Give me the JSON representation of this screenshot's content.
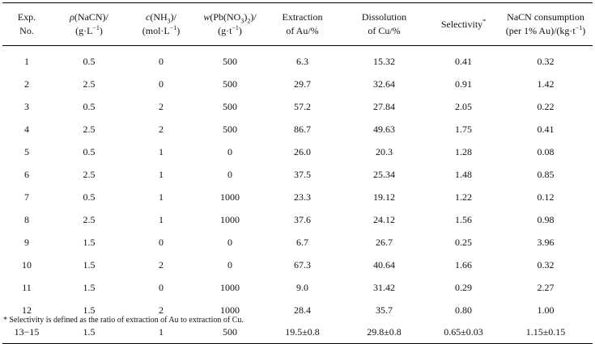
{
  "table": {
    "headers": [
      {
        "id": "exp",
        "lines": [
          [
            "Exp."
          ],
          [
            "No."
          ]
        ]
      },
      {
        "id": "nacn",
        "lines": [
          [
            {
              "t": "ρ",
              "i": true
            },
            "(NaCN)/"
          ],
          [
            "(g·L",
            {
              "sup": "−1"
            },
            ")"
          ]
        ]
      },
      {
        "id": "nh3",
        "lines": [
          [
            {
              "t": "c",
              "i": true
            },
            "(NH",
            {
              "sub": "3"
            },
            ")/"
          ],
          [
            "(mol·L",
            {
              "sup": "−1"
            },
            ")"
          ]
        ]
      },
      {
        "id": "pbno3",
        "lines": [
          [
            {
              "t": "w",
              "i": true
            },
            "(Pb(NO",
            {
              "sub": "3"
            },
            ")",
            {
              "sub": "2"
            },
            ")/"
          ],
          [
            "(g·t",
            {
              "sup": "−1"
            },
            ")"
          ]
        ]
      },
      {
        "id": "au",
        "lines": [
          [
            "Extraction"
          ],
          [
            "of Au/%"
          ]
        ]
      },
      {
        "id": "cu",
        "lines": [
          [
            "Dissolution"
          ],
          [
            "of Cu/%"
          ]
        ]
      },
      {
        "id": "sel",
        "lines": [
          [
            "Selectivity",
            {
              "sup": "*"
            }
          ]
        ]
      },
      {
        "id": "cons",
        "lines": [
          [
            "NaCN consumption"
          ],
          [
            "(per 1% Au)/(kg·t",
            {
              "sup": "−1"
            },
            ")"
          ]
        ]
      }
    ],
    "rows": [
      [
        "1",
        "0.5",
        "0",
        "500",
        "6.3",
        "15.32",
        "0.41",
        "0.32"
      ],
      [
        "2",
        "2.5",
        "0",
        "500",
        "29.7",
        "32.64",
        "0.91",
        "1.42"
      ],
      [
        "3",
        "0.5",
        "2",
        "500",
        "57.2",
        "27.84",
        "2.05",
        "0.22"
      ],
      [
        "4",
        "2.5",
        "2",
        "500",
        "86.7",
        "49.63",
        "1.75",
        "0.41"
      ],
      [
        "5",
        "0.5",
        "1",
        "0",
        "26.0",
        "20.3",
        "1.28",
        "0.08"
      ],
      [
        "6",
        "2.5",
        "1",
        "0",
        "37.5",
        "25.34",
        "1.48",
        "0.85"
      ],
      [
        "7",
        "0.5",
        "1",
        "1000",
        "23.3",
        "19.12",
        "1.22",
        "0.12"
      ],
      [
        "8",
        "2.5",
        "1",
        "1000",
        "37.6",
        "24.12",
        "1.56",
        "0.98"
      ],
      [
        "9",
        "1.5",
        "0",
        "0",
        "6.7",
        "26.7",
        "0.25",
        "3.96"
      ],
      [
        "10",
        "1.5",
        "2",
        "0",
        "67.3",
        "40.64",
        "1.66",
        "0.32"
      ],
      [
        "11",
        "1.5",
        "0",
        "1000",
        "9.0",
        "31.42",
        "0.29",
        "2.27"
      ],
      [
        "12",
        "1.5",
        "2",
        "1000",
        "28.4",
        "35.7",
        "0.80",
        "1.00"
      ],
      [
        "13−15",
        "1.5",
        "1",
        "500",
        "19.5±0.8",
        "29.8±0.8",
        "0.65±0.03",
        "1.15±0.15"
      ]
    ]
  },
  "footnote": "* Selectivity is defined as the ratio of extraction of Au to extraction of Cu."
}
